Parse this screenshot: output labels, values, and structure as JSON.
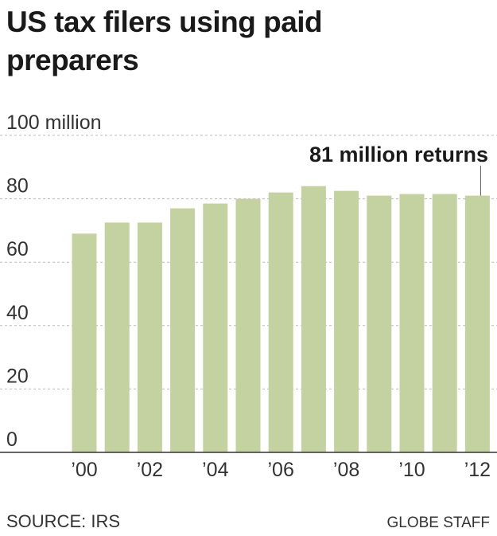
{
  "chart_data": {
    "type": "bar",
    "title": "US tax filers using paid preparers",
    "annotation": "81 million returns",
    "source": "SOURCE: IRS",
    "credit": "GLOBE STAFF",
    "categories": [
      "’00",
      null,
      "’02",
      null,
      "’04",
      null,
      "’06",
      null,
      "’08",
      null,
      "’10",
      null,
      "’12"
    ],
    "values": [
      69,
      72.5,
      72.5,
      77,
      78.5,
      80,
      82,
      84,
      82.5,
      81,
      81.5,
      81.5,
      81
    ],
    "color": "#c4d1a0",
    "ylim": [
      0,
      100
    ],
    "yticks": [
      0,
      20,
      40,
      60,
      80,
      {
        "value": 100,
        "label": "100 million"
      }
    ],
    "grid": true
  }
}
